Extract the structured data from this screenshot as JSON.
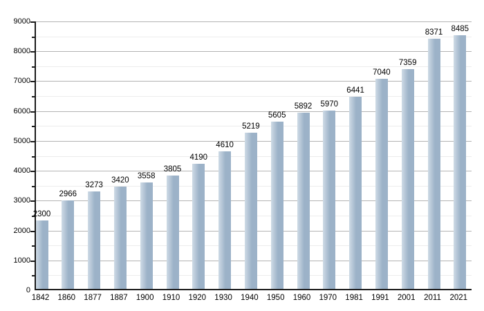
{
  "chart_data": {
    "type": "bar",
    "title": "",
    "xlabel": "",
    "ylabel": "",
    "categories": [
      "1842",
      "1860",
      "1877",
      "1887",
      "1900",
      "1910",
      "1920",
      "1930",
      "1940",
      "1950",
      "1960",
      "1970",
      "1981",
      "1991",
      "2001",
      "2011",
      "2021"
    ],
    "values": [
      2300,
      2966,
      3273,
      3420,
      3558,
      3805,
      4190,
      4610,
      5219,
      5605,
      5892,
      5970,
      6441,
      7040,
      7359,
      8371,
      8485
    ],
    "y_tick_labels": [
      "0",
      "1000",
      "2000",
      "3000",
      "4000",
      "5000",
      "6000",
      "7000",
      "8000",
      "9000"
    ],
    "ylim": [
      0,
      9000
    ],
    "y_major_step": 1000,
    "y_minor_step": 500,
    "grid": true,
    "legend": false,
    "data_labels": true,
    "colors": {
      "bar_main": "#9cb2c8",
      "bar_light": "#cfdbe6",
      "axis": "#1a1a1a",
      "major_grid": "#b3b3b3",
      "minor_grid": "#ececec",
      "text": "#000000",
      "background": "#ffffff"
    }
  }
}
